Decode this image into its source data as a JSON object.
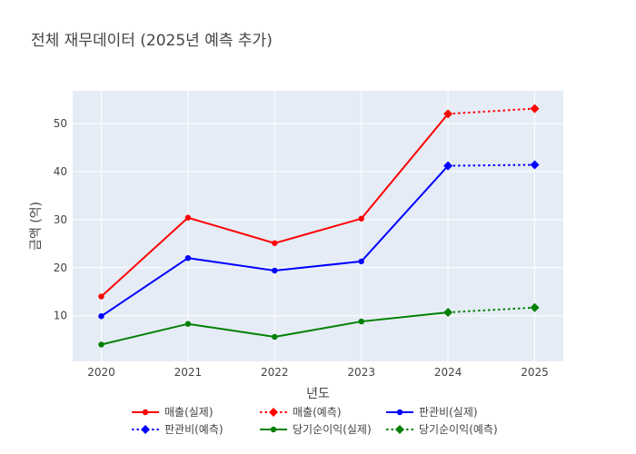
{
  "chart_data": {
    "type": "line",
    "title": "전체 재무데이터 (2025년 예측 추가)",
    "xlabel": "년도",
    "ylabel": "금액 (억)",
    "x_ticks": [
      "2020",
      "2021",
      "2022",
      "2023",
      "2024",
      "2025"
    ],
    "y_ticks": [
      "10",
      "20",
      "30",
      "40",
      "50"
    ],
    "xlim": [
      2019.67,
      2025.33
    ],
    "ylim": [
      0.5,
      56.8
    ],
    "grid": true,
    "legend_position": "bottom",
    "series": [
      {
        "name": "매출(실제)",
        "color": "#ff0000",
        "dash": "solid",
        "marker": "circle",
        "x": [
          2020,
          2021,
          2022,
          2023,
          2024
        ],
        "y": [
          14.0,
          30.4,
          25.1,
          30.2,
          52.0
        ]
      },
      {
        "name": "매출(예측)",
        "color": "#ff0000",
        "dash": "dot",
        "marker": "diamond",
        "x": [
          2024,
          2025
        ],
        "y": [
          52.0,
          53.1
        ]
      },
      {
        "name": "판관비(실제)",
        "color": "#0000ff",
        "dash": "solid",
        "marker": "circle",
        "x": [
          2020,
          2021,
          2022,
          2023,
          2024
        ],
        "y": [
          9.9,
          22.0,
          19.4,
          21.3,
          41.2
        ]
      },
      {
        "name": "판관비(예측)",
        "color": "#0000ff",
        "dash": "dot",
        "marker": "diamond",
        "x": [
          2024,
          2025
        ],
        "y": [
          41.2,
          41.4
        ]
      },
      {
        "name": "당기순이익(실제)",
        "color": "#008000",
        "dash": "solid",
        "marker": "circle",
        "x": [
          2020,
          2021,
          2022,
          2023,
          2024
        ],
        "y": [
          4.0,
          8.3,
          5.6,
          8.8,
          10.7
        ]
      },
      {
        "name": "당기순이익(예측)",
        "color": "#008000",
        "dash": "dot",
        "marker": "diamond",
        "x": [
          2024,
          2025
        ],
        "y": [
          10.7,
          11.7
        ]
      }
    ]
  }
}
